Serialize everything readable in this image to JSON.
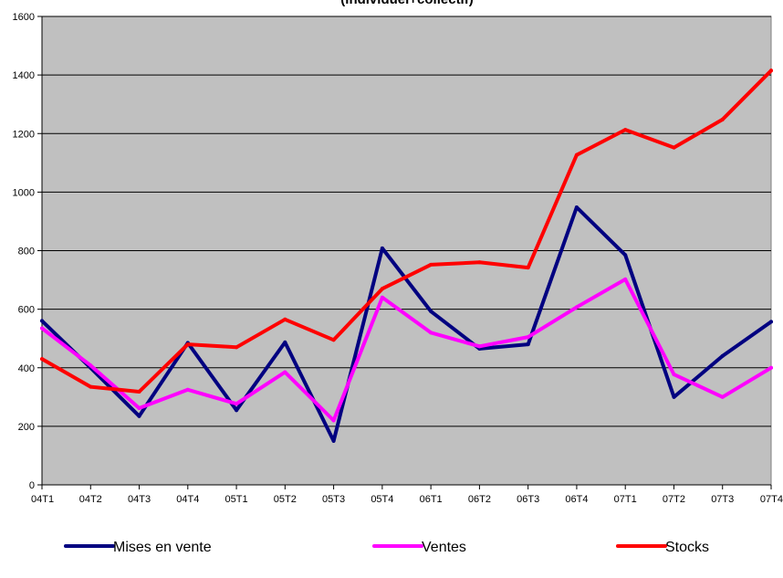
{
  "chart_data": {
    "type": "line",
    "title": "(individuel+collectif)",
    "categories": [
      "04T1",
      "04T2",
      "04T3",
      "04T4",
      "05T1",
      "05T2",
      "05T3",
      "05T4",
      "06T1",
      "06T2",
      "06T3",
      "06T4",
      "07T1",
      "07T2",
      "07T3",
      "07T4"
    ],
    "series": [
      {
        "name": "Mises en vente",
        "color": "#000080",
        "values": [
          560,
          400,
          235,
          485,
          255,
          487,
          150,
          808,
          593,
          465,
          480,
          948,
          785,
          300,
          440,
          557
        ]
      },
      {
        "name": "Ventes",
        "color": "#ff00ff",
        "values": [
          535,
          408,
          262,
          325,
          277,
          385,
          220,
          640,
          520,
          473,
          505,
          607,
          702,
          377,
          300,
          400
        ]
      },
      {
        "name": "Stocks",
        "color": "#ff0000",
        "values": [
          430,
          335,
          318,
          480,
          470,
          565,
          495,
          670,
          752,
          760,
          742,
          1127,
          1213,
          1152,
          1248,
          1415
        ]
      }
    ],
    "ylim": [
      0,
      1600
    ],
    "yticks": [
      0,
      200,
      400,
      600,
      800,
      1000,
      1200,
      1400,
      1600
    ],
    "grid": true,
    "plot_background": "#c0c0c0",
    "legend_position": "bottom"
  }
}
